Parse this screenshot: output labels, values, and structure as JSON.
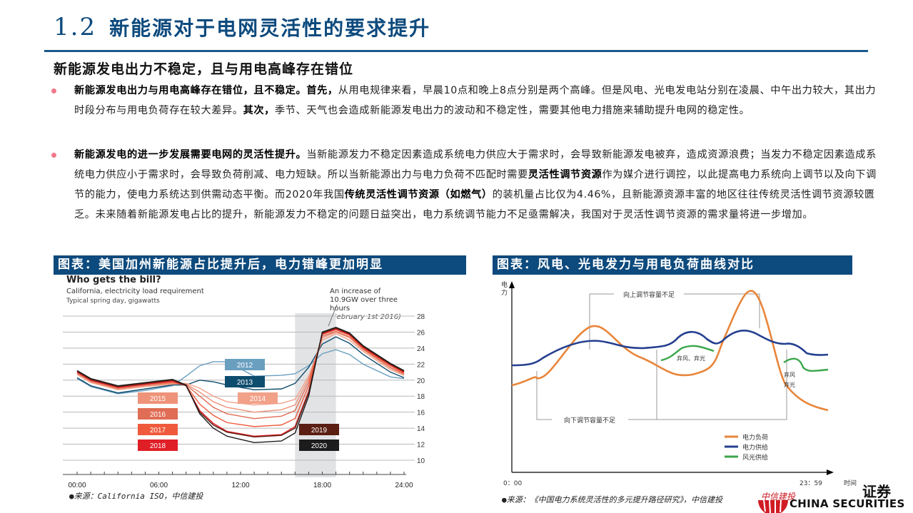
{
  "header": {
    "section_number": "1.2",
    "title": "新能源对于电网灵活性的要求提升",
    "subtitle": "新能源发电出力不稳定，且与用电高峰存在错位"
  },
  "bullets": [
    {
      "bold1": "新能源发电出力与用电高峰存在错位，且不稳定。首先，",
      "text1": "从用电规律来看，早晨10点和晚上8点分别是两个高峰。但是风电、光电发电站分别在凌晨、中午出力较大，其出力时段分布与用电负荷存在较大差异。",
      "bold2": "其次，",
      "text2": "季节、天气也会造成新能源发电出力的波动和不稳定性，需要其他电力措施来辅助提升电网的稳定性。"
    },
    {
      "bold1": "新能源发电的进一步发展需要电网的灵活性提升。",
      "text1": "当新能源发力不稳定因素造成系统电力供应大于需求时，会导致新能源发电被弃，造成资源浪费；当发力不稳定因素造成系统电力供应小于需求时，会导致负荷削减、电力短缺。所以当新能源出力与电力负荷不匹配时需要",
      "bold2": "灵活性调节资源",
      "text2": "作为媒介进行调控，以此提高电力系统向上调节以及向下调节的能力，使电力系统达到供需动态平衡。而2020年我国",
      "bold3": "传统灵活性调节资源（如燃气）",
      "text3": "的装机量占比仅为4.46%，且新能源资源丰富的地区往往传统灵活性调节资源较匮乏。未来随着新能源发电占比的提升，新能源发力不稳定的问题日益突出，电力系统调节能力不足亟需解决，我国对于灵活性调节资源的需求量将进一步增加。"
    }
  ],
  "figure_left": {
    "caption": "图表：美国加州新能源占比提升后，电力错峰更加明显",
    "source": "●来源：California ISO，中信建投"
  },
  "figure_right": {
    "caption": "图表：风电、光电发力与用电负荷曲线对比",
    "source": "●来源：《中国电力系统灵活性的多元提升路径研究》，中信建投"
  },
  "logo": {
    "cn_suffix": "证券",
    "cn_brand": "中信建投",
    "en": "CHINA SECURITIES"
  },
  "colors": {
    "brand_blue": "#0d4a7d",
    "bullet_dot": "#f0788a",
    "load_orange": "#e8853a",
    "supply_blue": "#243f8f",
    "renewable_green": "#3aa64a"
  },
  "chart_data": [
    {
      "type": "line",
      "title": "Who gets the bill?",
      "subtitle": "California, electricity load requirement",
      "subtitle2": "Typical spring day, gigawatts",
      "annotation": "An increase of 10.9GW over three hours",
      "annotation_note": "(February 1st 2016)",
      "xlabel": "",
      "ylabel": "",
      "x_ticks": [
        "00:00",
        "06:00",
        "12:00",
        "18:00",
        "24:00"
      ],
      "y_ticks": [
        10,
        12,
        14,
        16,
        18,
        20,
        22,
        24,
        26,
        28
      ],
      "ylim": [
        10,
        28
      ],
      "x": [
        0,
        1,
        3,
        5,
        7,
        8,
        9,
        10,
        11,
        13,
        15,
        16,
        17,
        18,
        19,
        20,
        21,
        23,
        24
      ],
      "shaded_region_hours": [
        16,
        19
      ],
      "series": [
        {
          "name": "2012",
          "color": "#6a9fc0",
          "values": [
            20.2,
            19.2,
            18.3,
            18.7,
            19.3,
            20.5,
            21.8,
            22.3,
            22.3,
            20.5,
            20.6,
            20.8,
            21.8,
            23.3,
            23.8,
            23.2,
            22.0,
            20.4,
            20.2
          ]
        },
        {
          "name": "2013",
          "color": "#0f4d6e",
          "values": [
            20.3,
            19.3,
            18.4,
            18.9,
            19.4,
            19.4,
            20.0,
            19.8,
            19.4,
            18.8,
            18.9,
            19.6,
            21.6,
            24.5,
            25.4,
            24.6,
            23.2,
            21.0,
            20.3
          ]
        },
        {
          "name": "2014",
          "color": "#f2a189",
          "values": [
            20.7,
            19.7,
            18.8,
            19.2,
            19.5,
            19.6,
            19.0,
            18.0,
            17.3,
            16.9,
            17.1,
            17.6,
            20.5,
            25.0,
            25.8,
            25.0,
            23.6,
            21.3,
            20.6
          ]
        },
        {
          "name": "2015",
          "color": "#ee9379",
          "values": [
            20.8,
            19.8,
            18.9,
            19.3,
            19.6,
            19.5,
            18.5,
            17.3,
            16.6,
            16.0,
            16.3,
            16.9,
            20.2,
            25.3,
            26.0,
            25.3,
            23.8,
            21.5,
            20.7
          ]
        },
        {
          "name": "2016",
          "color": "#e06d55",
          "values": [
            20.9,
            19.9,
            19.0,
            19.4,
            19.7,
            19.4,
            18.0,
            16.6,
            15.8,
            15.2,
            15.5,
            16.2,
            19.8,
            25.5,
            26.1,
            25.4,
            23.9,
            21.6,
            20.8
          ]
        },
        {
          "name": "2017",
          "color": "#ef5a3c",
          "values": [
            21.0,
            20.0,
            19.1,
            19.5,
            19.8,
            19.3,
            17.0,
            15.6,
            14.7,
            14.2,
            14.4,
            15.2,
            19.3,
            25.7,
            26.3,
            25.6,
            24.0,
            21.8,
            20.9
          ]
        },
        {
          "name": "2018",
          "color": "#e01e26",
          "values": [
            21.0,
            20.0,
            19.1,
            19.5,
            19.9,
            19.3,
            16.2,
            14.6,
            13.6,
            13.0,
            13.2,
            14.2,
            18.6,
            25.8,
            26.4,
            25.7,
            24.1,
            21.9,
            21.0
          ]
        },
        {
          "name": "2019",
          "color": "#5a1e12",
          "values": [
            21.1,
            20.1,
            19.2,
            19.6,
            20.0,
            19.3,
            16.0,
            14.4,
            13.5,
            12.9,
            13.1,
            14.0,
            18.4,
            25.9,
            26.5,
            25.8,
            24.2,
            22.0,
            21.1
          ]
        },
        {
          "name": "2020",
          "color": "#1c1c1c",
          "values": [
            21.2,
            20.2,
            19.3,
            19.7,
            20.1,
            19.4,
            15.8,
            14.0,
            13.0,
            12.2,
            12.4,
            13.4,
            18.0,
            26.0,
            26.6,
            25.9,
            24.3,
            22.1,
            21.2
          ]
        }
      ],
      "legend_labels": [
        "2012",
        "2013",
        "2014",
        "2015",
        "2016",
        "2017",
        "2018",
        "2019",
        "2020"
      ]
    },
    {
      "type": "line",
      "title": "风电、光电发力与用电负荷曲线对比",
      "xlabel": "时间",
      "ylabel": "电力",
      "x_ticks": [
        "0：00",
        "23：59"
      ],
      "annotations": [
        "向上调节容量不足",
        "向下调节容量不足",
        "弃风、弃光",
        "弃风",
        "弃光"
      ],
      "legend": [
        "电力负荷",
        "电力供给",
        "风光供给"
      ],
      "series": [
        {
          "name": "电力负荷",
          "color": "#e8853a",
          "values_relative": [
            0.18,
            0.25,
            0.3,
            0.55,
            0.72,
            0.62,
            0.42,
            0.28,
            0.3,
            0.45,
            0.95,
            0.55,
            0.15,
            0.05
          ]
        },
        {
          "name": "电力供给",
          "color": "#243f8f",
          "values_relative": [
            0.35,
            0.4,
            0.5,
            0.6,
            0.58,
            0.57,
            0.65,
            0.6,
            0.55,
            0.65,
            0.58,
            0.52,
            0.4,
            0.42
          ]
        },
        {
          "name": "风光供给",
          "color": "#3aa64a",
          "values_relative": [
            null,
            null,
            null,
            null,
            null,
            0.35,
            0.48,
            0.45,
            null,
            null,
            null,
            0.35,
            0.25,
            0.3
          ]
        }
      ]
    }
  ]
}
